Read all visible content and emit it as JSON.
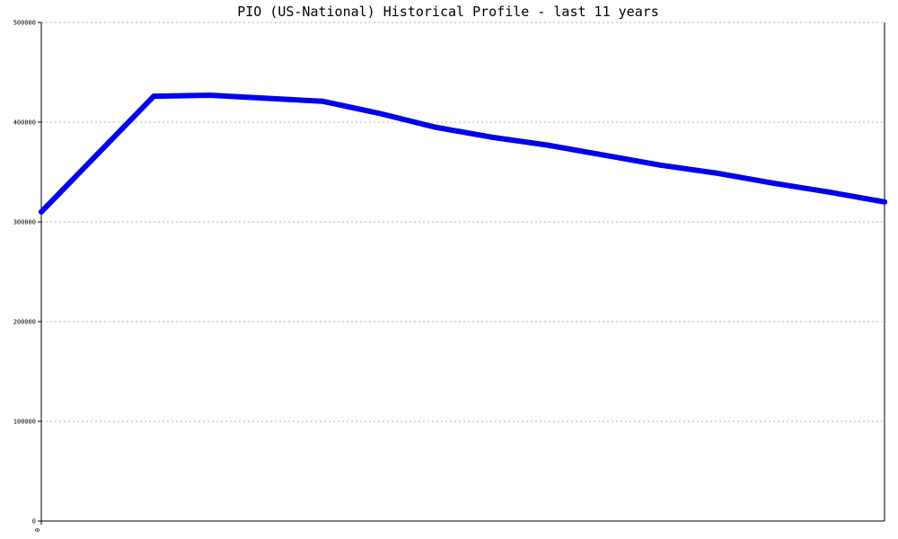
{
  "chart_data": {
    "type": "line",
    "title": "PIO (US-National) Historical Profile - last 11 years",
    "xlabel": "",
    "ylabel": "",
    "ylim": [
      0,
      500000
    ],
    "y_ticks": [
      0,
      100000,
      200000,
      300000,
      400000,
      500000
    ],
    "y_tick_labels": [
      "0",
      "100000",
      "200000",
      "300000",
      "400000",
      "500000"
    ],
    "x_tick_labels": [
      "0"
    ],
    "grid": true,
    "legend": "none",
    "colors": {
      "series": "#0000ee",
      "grid": "#b4b4b4",
      "axis": "#000000"
    },
    "series": [
      {
        "values": [
          310000,
          368000,
          426000,
          427000,
          424000,
          421000,
          409000,
          395000,
          385000,
          377000,
          367000,
          357000,
          349000,
          339000,
          330000,
          320000
        ]
      }
    ]
  }
}
